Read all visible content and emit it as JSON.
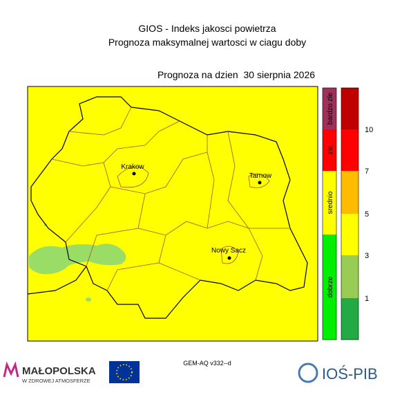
{
  "header": {
    "title": "GIOS - Indeks jakosci powietrza",
    "subtitle": "Prognoza maksymalnej wartosci w ciagu doby",
    "forecast_date": "Prognoza na dzien  30 sierpnia 2026"
  },
  "map": {
    "cities": [
      {
        "label": "Krakow"
      },
      {
        "label": "Tarnow"
      },
      {
        "label": "Nowy Sacz"
      }
    ]
  },
  "legend": {
    "categories": [
      "bardzo zle",
      "zle",
      "srednio",
      "dobrze"
    ],
    "scale_labels": [
      10,
      7,
      5,
      3,
      1
    ]
  },
  "footer": {
    "logo_left": "MAŁOPOLSKA",
    "logo_left_tagline": "W ZDROWEJ ATMOSFERZE",
    "model": "GEM-AQ v332--d",
    "logo_right": "IOŚ-PIB"
  }
}
